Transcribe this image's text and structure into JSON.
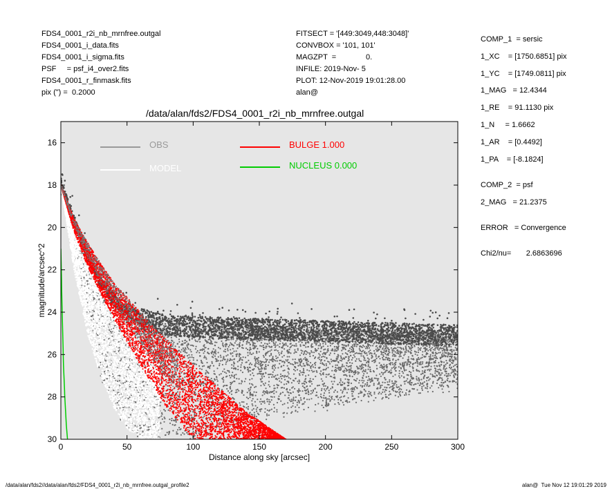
{
  "header_left": [
    "FDS4_0001_r2i_nb_mrnfree.outgal",
    "FDS4_0001_i_data.fits",
    "FDS4_0001_i_sigma.fits",
    "PSF     = psf_i4_over2.fits",
    "FDS4_0001_r_finmask.fits",
    "pix (\") =  0.2000"
  ],
  "header_middle": [
    "FITSECT = '[449:3049,448:3048]'",
    "CONVBOX = '101, 101'",
    "MAGZPT  =              0.",
    "INFILE: 2019-Nov- 5",
    "PLOT: 12-Nov-2019 19:01:28.00",
    "alan@"
  ],
  "params_comp1": [
    "COMP_1  = sersic",
    "1_XC    = [1750.6851] pix",
    "1_YC    = [1749.0811] pix",
    "1_MAG   = 12.4344",
    "1_RE    = 91.1130 pix",
    "1_N     = 1.6662",
    "1_AR    = [0.4492]",
    "1_PA    = [-8.1824]"
  ],
  "params_comp2": [
    "COMP_2  = psf",
    "2_MAG   = 21.2375"
  ],
  "error_line": "ERROR   = Convergence",
  "chi_line": "Chi2/nu=       2.6863696",
  "footer_left": "/data/alan/fds2//data/alan/fds2/FDS4_0001_r2i_nb_mrnfree.outgal_profile2",
  "footer_right": "alan@  Tue Nov 12 19:01:29 2019",
  "colors": {
    "panel_bg": "#e6e6e6",
    "obs": "#555555",
    "model": "#ffffff",
    "bulge": "#ff0000",
    "nucleus": "#00cc00"
  },
  "chart_data": {
    "type": "scatter",
    "title": "/data/alan/fds2/FDS4_0001_r2i_nb_mrnfree.outgal",
    "xlabel": "Distance along sky [arcsec]",
    "ylabel": "magnitude/arcsec^2",
    "xlim": [
      0,
      300
    ],
    "ylim": [
      30,
      15
    ],
    "x_ticks": [
      "0",
      "50",
      "100",
      "150",
      "200",
      "250",
      "300"
    ],
    "y_ticks": [
      "16",
      "18",
      "20",
      "22",
      "24",
      "26",
      "28",
      "30"
    ],
    "legend": [
      {
        "label": "OBS",
        "color": "#999999"
      },
      {
        "label": "MODEL",
        "color": "#ffffff"
      },
      {
        "label": "BULGE  1.000",
        "color": "#ff0000"
      },
      {
        "label": "NUCLEUS  0.000",
        "color": "#00cc00"
      }
    ],
    "series": [
      {
        "name": "OBS",
        "x": [
          0,
          5,
          10,
          15,
          20,
          25,
          30,
          40,
          50,
          60,
          70,
          80,
          100,
          150,
          200,
          250,
          300
        ],
        "y_upper": [
          18.0,
          18.9,
          19.7,
          20.5,
          21.3,
          22.0,
          22.6,
          23.4,
          23.9,
          24.3,
          24.5,
          24.6,
          24.7,
          24.8,
          24.9,
          25.0,
          25.1
        ],
        "y_lower": [
          18.0,
          19.5,
          21.0,
          22.5,
          24.0,
          25.5,
          27.0,
          28.5,
          29.5,
          30.0,
          30.0,
          30.0,
          30.0,
          29.0,
          28.5,
          28.0,
          27.5
        ]
      },
      {
        "name": "MODEL",
        "x": [
          0,
          5,
          10,
          15,
          20,
          30,
          40,
          50,
          60,
          75
        ],
        "y_upper": [
          18.0,
          19.0,
          20.0,
          20.8,
          21.6,
          22.8,
          23.8,
          24.7,
          25.5,
          26.5
        ],
        "y_lower": [
          18.0,
          20.0,
          22.0,
          23.5,
          25.0,
          27.0,
          28.5,
          29.5,
          30.0,
          30.0
        ]
      },
      {
        "name": "BULGE",
        "x": [
          0,
          10,
          20,
          30,
          40,
          50,
          60,
          70,
          80,
          100,
          120,
          140,
          170
        ],
        "y_upper": [
          18.0,
          19.6,
          20.7,
          21.7,
          22.6,
          23.3,
          24.0,
          24.7,
          25.3,
          26.5,
          27.6,
          28.7,
          30.0
        ],
        "y_lower": [
          18.0,
          20.2,
          21.8,
          23.1,
          24.3,
          25.4,
          26.5,
          27.5,
          28.5,
          30.0,
          30.0,
          30.0,
          30.0
        ]
      },
      {
        "name": "NUCLEUS",
        "x": [
          0,
          1,
          2,
          3,
          4,
          5
        ],
        "y": [
          21.0,
          24.0,
          26.5,
          28.0,
          29.2,
          30.0
        ]
      }
    ]
  }
}
